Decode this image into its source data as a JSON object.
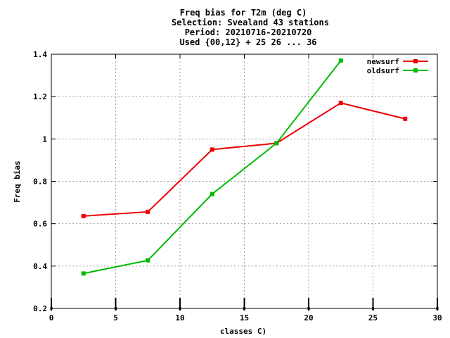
{
  "chart_data": {
    "type": "line",
    "title_lines": [
      "Freq bias  for T2m (deg C)",
      "Selection: Svealand     43 stations",
      "Period: 20210716-20210720",
      "Used {00,12} + 25 26 ... 36"
    ],
    "xlabel": "classes C)",
    "ylabel": "Freq bias",
    "xlim": [
      0,
      30
    ],
    "ylim": [
      0.2,
      1.4
    ],
    "xticks": [
      "0",
      "5",
      "10",
      "15",
      "20",
      "25",
      "30"
    ],
    "yticks": [
      "0.2",
      "0.4",
      "0.6",
      "0.8",
      "1",
      "1.2",
      "1.4"
    ],
    "grid": true,
    "legend_position": "top-right",
    "series": [
      {
        "name": "newsurf",
        "color": "#ee0000",
        "x": [
          2.5,
          7.5,
          12.5,
          17.5,
          22.5,
          27.5
        ],
        "y": [
          0.636,
          0.656,
          0.95,
          0.98,
          1.17,
          1.095
        ]
      },
      {
        "name": "oldsurf",
        "color": "#00bb00",
        "x": [
          2.5,
          7.5,
          12.5,
          17.5,
          22.5
        ],
        "y": [
          0.365,
          0.427,
          0.74,
          0.98,
          1.37
        ]
      }
    ]
  }
}
